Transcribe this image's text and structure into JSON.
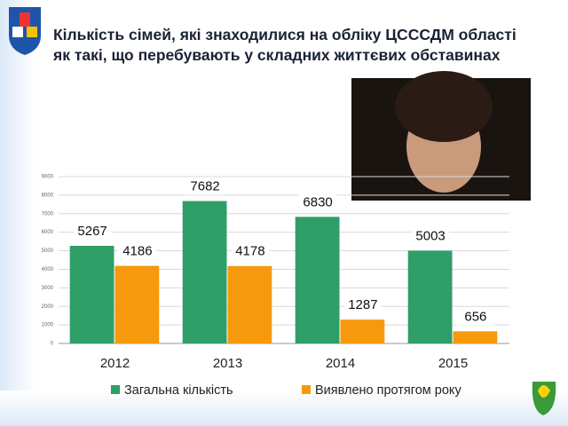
{
  "chart_data": {
    "type": "grouped-bar",
    "title": "Кількість сімей, які знаходилися на обліку ЦСССДМ області як такі, що перебувають у складних життєвих обставинах",
    "categories": [
      "2012",
      "2013",
      "2014",
      "2015"
    ],
    "series": [
      {
        "name": "Загальна кількість",
        "color": "#2f9e68",
        "values": [
          5267,
          7682,
          6830,
          5003
        ]
      },
      {
        "name": "Виявлено протягом року",
        "color": "#f7990c",
        "values": [
          4186,
          4178,
          1287,
          656
        ]
      }
    ],
    "ylim": [
      0,
      9000
    ],
    "yticks": [
      0,
      1000,
      2000,
      3000,
      4000,
      5000,
      6000,
      7000,
      8000,
      9000
    ],
    "grid": true,
    "legend": "bottom"
  }
}
